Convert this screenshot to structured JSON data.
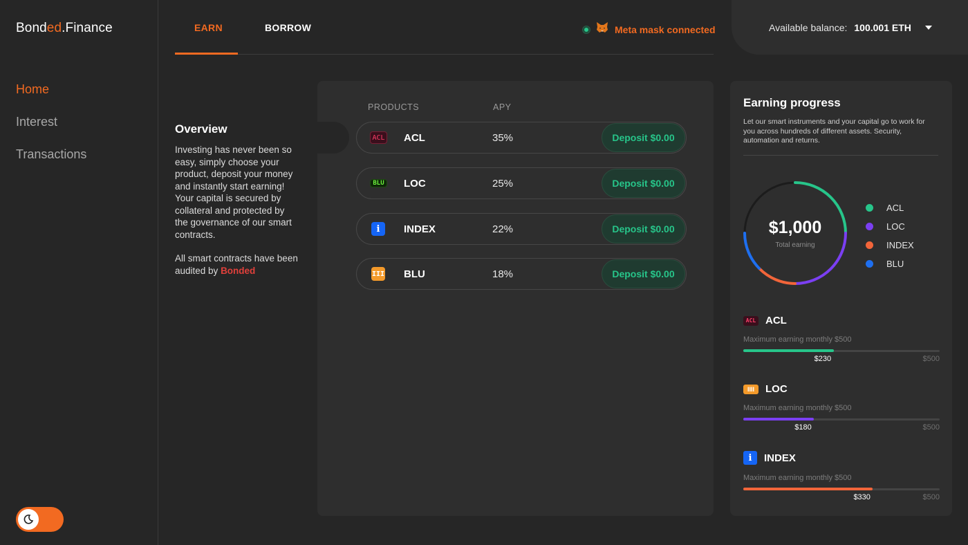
{
  "brand": {
    "part1": "Bond",
    "part2": "ed",
    "part3": ".Finance"
  },
  "sidebar": {
    "items": [
      {
        "label": "Home"
      },
      {
        "label": "Interest"
      },
      {
        "label": "Transactions"
      }
    ]
  },
  "header": {
    "tabs": [
      {
        "label": "EARN"
      },
      {
        "label": "BORROW"
      }
    ],
    "wallet_status": "Meta mask connected",
    "balance_label": "Available balance:",
    "balance_value": "100.001 ETH"
  },
  "overview": {
    "title": "Overview",
    "body": "Investing has never been so easy, simply choose your product, deposit your money and instantly start earning! Your capital is secured by collateral and protected by the governance of our smart contracts.",
    "audit_prefix": "All smart contracts have been audited by ",
    "audit_brand": "Bonded"
  },
  "products": {
    "headers": {
      "product": "PRODUCTS",
      "apy": "APY"
    },
    "rows": [
      {
        "icon_text": "ACL",
        "name": "ACL",
        "apy": "35%",
        "deposit": "Deposit $0.00"
      },
      {
        "icon_text": "BLU",
        "name": "LOC",
        "apy": "25%",
        "deposit": "Deposit $0.00"
      },
      {
        "icon_text": "i",
        "name": "INDEX",
        "apy": "22%",
        "deposit": "Deposit $0.00"
      },
      {
        "icon_text": "III",
        "name": "BLU",
        "apy": "18%",
        "deposit": "Deposit $0.00"
      }
    ]
  },
  "earning": {
    "title": "Earning progress",
    "description": "Let our smart instruments and your capital go to work for you across hundreds of different assets. Security, automation and returns.",
    "total": "$1,000",
    "total_label": "Total earning",
    "legend": [
      {
        "label": "ACL",
        "color": "#27c58a"
      },
      {
        "label": "LOC",
        "color": "#7b3ff2"
      },
      {
        "label": "INDEX",
        "color": "#f2653a"
      },
      {
        "label": "BLU",
        "color": "#1e6ff0"
      }
    ],
    "progress": [
      {
        "icon_text": "ACL",
        "name": "ACL",
        "max_label": "Maximum earning monthly  $500",
        "current": "$230",
        "max": "$500",
        "fraction": 0.46,
        "color": "#27c58a"
      },
      {
        "icon_text": "IIII",
        "name": "LOC",
        "max_label": "Maximum earning monthly  $500",
        "current": "$180",
        "max": "$500",
        "fraction": 0.36,
        "color": "#7b3ff2"
      },
      {
        "icon_text": "i",
        "name": "INDEX",
        "max_label": "Maximum earning monthly  $500",
        "current": "$330",
        "max": "$500",
        "fraction": 0.66,
        "color": "#f2653a"
      }
    ]
  }
}
